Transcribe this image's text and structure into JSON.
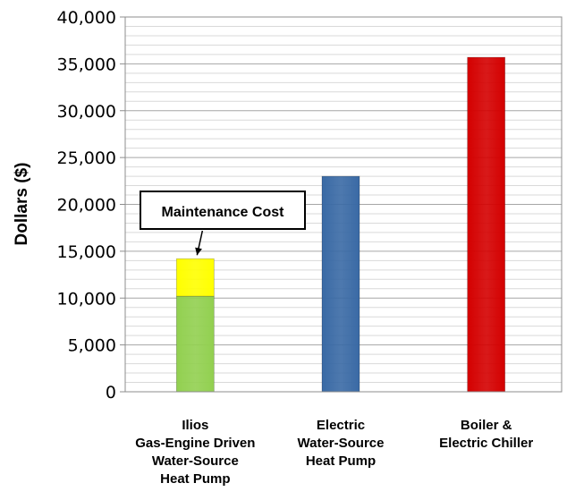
{
  "chart_data": {
    "type": "bar",
    "title": "",
    "xlabel": "",
    "ylabel": "Dollars ($)",
    "ylim": [
      0,
      40000
    ],
    "yticks": [
      0,
      5000,
      10000,
      15000,
      20000,
      25000,
      30000,
      35000,
      40000
    ],
    "ytick_labels": [
      "0",
      "5,000",
      "10,000",
      "15,000",
      "20,000",
      "25,000",
      "30,000",
      "35,000",
      "40,000"
    ],
    "grid": true,
    "legend": "none",
    "categories": [
      [
        "Ilios",
        "Gas-Engine Driven",
        "Water-Source",
        "Heat Pump"
      ],
      [
        "Electric",
        "Water-Source",
        "Heat Pump"
      ],
      [
        "Boiler &",
        "Electric Chiller"
      ]
    ],
    "bars": [
      {
        "segments": [
          {
            "value": 10200,
            "color": "#92d050"
          },
          {
            "value": 4000,
            "color": "#ffff00"
          }
        ]
      },
      {
        "segments": [
          {
            "value": 23000,
            "color": "#3a6aa5"
          }
        ]
      },
      {
        "segments": [
          {
            "value": 35700,
            "color": "#d40000"
          }
        ]
      }
    ],
    "annotation": {
      "text": "Maintenance Cost",
      "bar_index": 0,
      "segment_index": 1
    }
  }
}
